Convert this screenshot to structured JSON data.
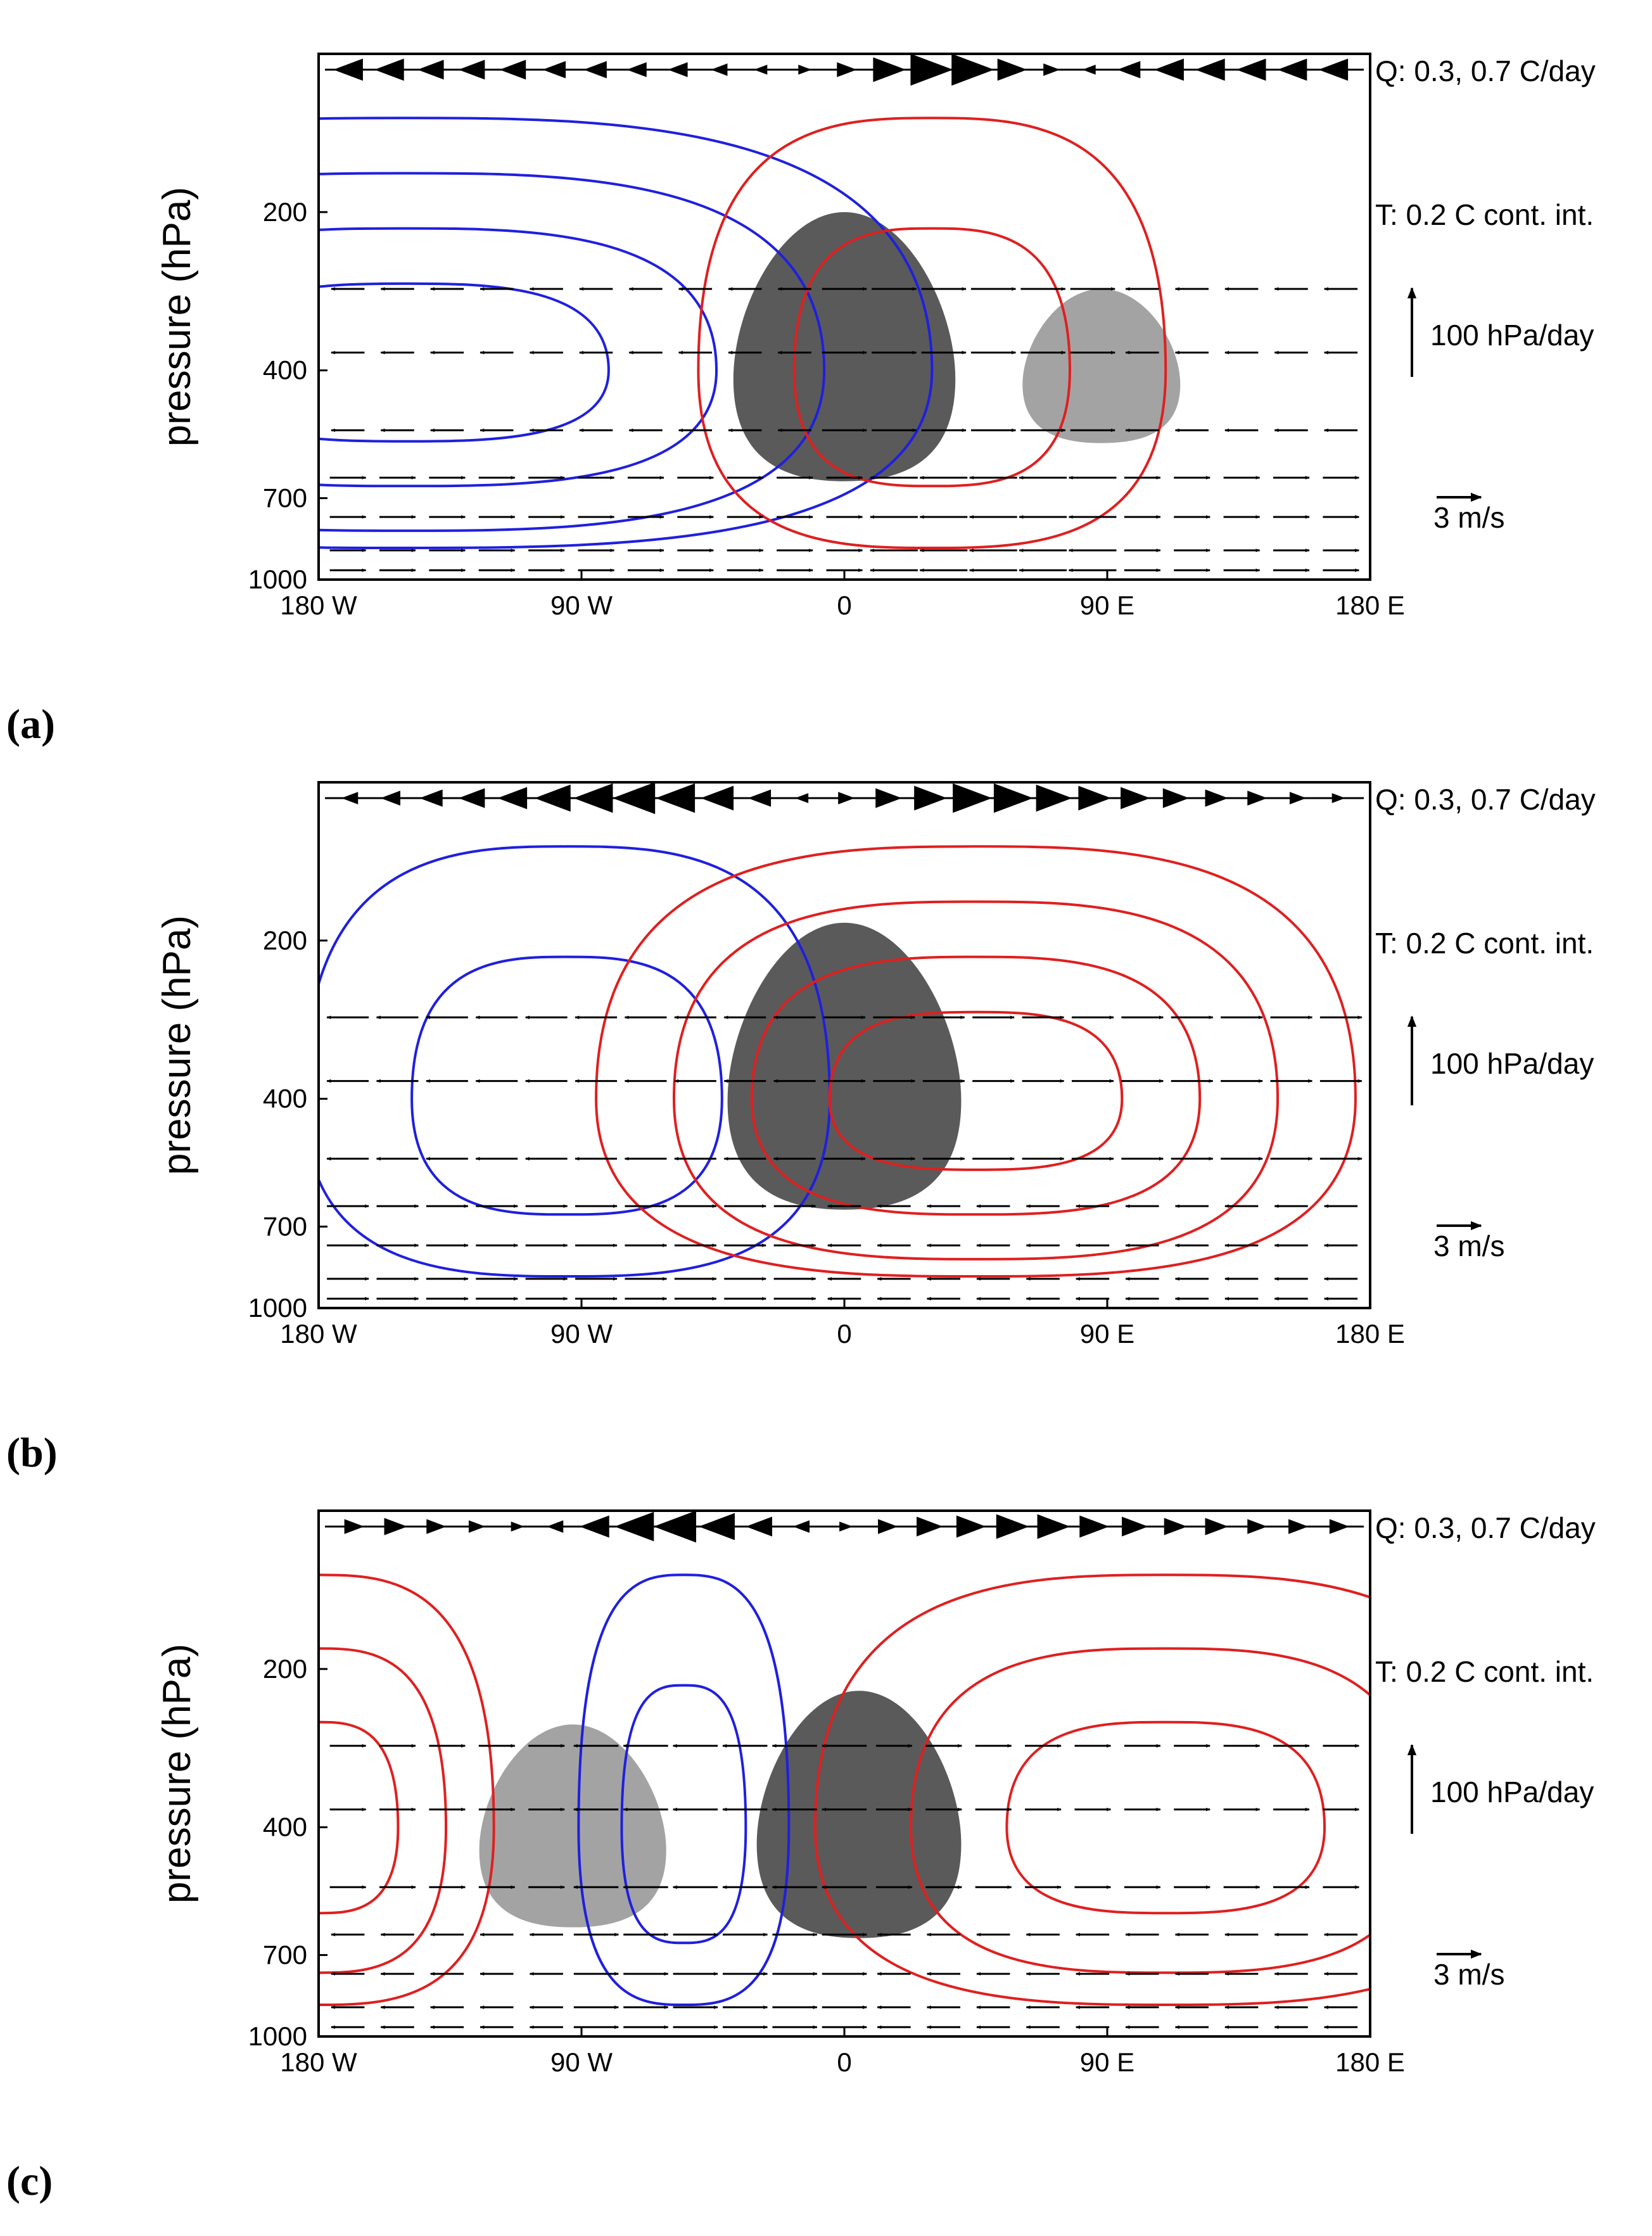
{
  "chart_data": [
    {
      "type": "contour",
      "panel_label": "(a)",
      "xlabel": "",
      "ylabel": "pressure (hPa)",
      "xlim": [
        -180,
        180
      ],
      "ylim_hPa": [
        1000,
        100
      ],
      "x_ticks": [
        {
          "value": -180,
          "label": "180 W"
        },
        {
          "value": -90,
          "label": "90 W"
        },
        {
          "value": 0,
          "label": "0"
        },
        {
          "value": 90,
          "label": "90 E"
        },
        {
          "value": 180,
          "label": "180 E"
        }
      ],
      "y_ticks": [
        {
          "value": 200,
          "label": "200"
        },
        {
          "value": 400,
          "label": "400"
        },
        {
          "value": 700,
          "label": "700"
        },
        {
          "value": 1000,
          "label": "1000"
        }
      ],
      "heating_label": "Q: 0.3, 0.7 C/day",
      "temperature_label": "T: 0.2 C cont. int.",
      "omega_scale_label": "100 hPa/day",
      "wind_scale_label": "3 m/s",
      "heating": [
        {
          "lon": 0,
          "p_top": 200,
          "p_bottom": 650,
          "width_deg": 76,
          "level": 0.7
        },
        {
          "lon": 88,
          "p_top": 280,
          "p_bottom": 550,
          "width_deg": 54,
          "level": 0.3
        }
      ],
      "warm_centers": [
        {
          "lon": 30,
          "p": 400,
          "half_width_deg": 80,
          "levels": 2
        }
      ],
      "cold_centers": [
        {
          "lon": -150,
          "p": 400,
          "half_width_deg": 180,
          "levels": 4
        }
      ],
      "top_row_vectors": [
        -0.6,
        -0.6,
        -0.5,
        -0.5,
        -0.5,
        -0.4,
        -0.4,
        -0.3,
        -0.3,
        -0.2,
        -0.1,
        0.1,
        0.3,
        0.7,
        1.0,
        1.0,
        0.6,
        0.2,
        -0.1,
        -0.4,
        -0.6,
        -0.6,
        -0.6,
        -0.6,
        -0.6
      ],
      "wind_pattern": "west"
    },
    {
      "type": "contour",
      "panel_label": "(b)",
      "xlabel": "",
      "ylabel": "pressure (hPa)",
      "xlim": [
        -180,
        180
      ],
      "ylim_hPa": [
        1000,
        100
      ],
      "x_ticks": [
        {
          "value": -180,
          "label": "180 W"
        },
        {
          "value": -90,
          "label": "90 W"
        },
        {
          "value": 0,
          "label": "0"
        },
        {
          "value": 90,
          "label": "90 E"
        },
        {
          "value": 180,
          "label": "180 E"
        }
      ],
      "y_ticks": [
        {
          "value": 200,
          "label": "200"
        },
        {
          "value": 400,
          "label": "400"
        },
        {
          "value": 700,
          "label": "700"
        },
        {
          "value": 1000,
          "label": "1000"
        }
      ],
      "heating_label": "Q: 0.3, 0.7 C/day",
      "temperature_label": "T: 0.2 C cont. int.",
      "omega_scale_label": "100 hPa/day",
      "wind_scale_label": "3 m/s",
      "heating": [
        {
          "lon": 0,
          "p_top": 185,
          "p_bottom": 650,
          "width_deg": 80,
          "level": 0.7
        }
      ],
      "warm_centers": [
        {
          "lon": 45,
          "p": 400,
          "half_width_deg": 130,
          "levels": 4
        }
      ],
      "cold_centers": [
        {
          "lon": -95,
          "p": 400,
          "half_width_deg": 90,
          "levels": 2
        }
      ],
      "top_row_vectors": [
        -0.2,
        -0.3,
        -0.4,
        -0.5,
        -0.6,
        -0.8,
        -0.9,
        -1.0,
        -0.9,
        -0.7,
        -0.4,
        -0.1,
        0.2,
        0.5,
        0.7,
        0.9,
        0.9,
        0.8,
        0.7,
        0.6,
        0.5,
        0.4,
        0.3,
        0.2,
        0.1
      ],
      "wind_pattern": "convergent"
    },
    {
      "type": "contour",
      "panel_label": "(c)",
      "xlabel": "",
      "ylabel": "pressure (hPa)",
      "xlim": [
        -180,
        180
      ],
      "ylim_hPa": [
        1000,
        100
      ],
      "x_ticks": [
        {
          "value": -180,
          "label": "180 W"
        },
        {
          "value": -90,
          "label": "90 W"
        },
        {
          "value": 0,
          "label": "0"
        },
        {
          "value": 90,
          "label": "90 E"
        },
        {
          "value": 180,
          "label": "180 E"
        }
      ],
      "y_ticks": [
        {
          "value": 200,
          "label": "200"
        },
        {
          "value": 400,
          "label": "400"
        },
        {
          "value": 700,
          "label": "700"
        },
        {
          "value": 1000,
          "label": "1000"
        }
      ],
      "heating_label": "Q: 0.3, 0.7 C/day",
      "temperature_label": "T: 0.2 C cont. int.",
      "omega_scale_label": "100 hPa/day",
      "wind_scale_label": "3 m/s",
      "heating": [
        {
          "lon": 5,
          "p_top": 220,
          "p_bottom": 650,
          "width_deg": 70,
          "level": 0.7
        },
        {
          "lon": -93,
          "p_top": 255,
          "p_bottom": 620,
          "width_deg": 64,
          "level": 0.3
        }
      ],
      "warm_centers": [
        {
          "lon": 110,
          "p": 400,
          "half_width_deg": 120,
          "levels": 3
        },
        {
          "lon": -180,
          "p": 400,
          "half_width_deg": 60,
          "levels": 3
        }
      ],
      "cold_centers": [
        {
          "lon": -55,
          "p": 400,
          "half_width_deg": 36,
          "levels": 2
        }
      ],
      "top_row_vectors": [
        0.3,
        0.4,
        0.3,
        0.2,
        0.1,
        -0.2,
        -0.6,
        -0.9,
        -1.0,
        -0.8,
        -0.5,
        -0.2,
        0.1,
        0.3,
        0.5,
        0.6,
        0.7,
        0.7,
        0.6,
        0.5,
        0.4,
        0.4,
        0.3,
        0.3,
        0.3
      ],
      "wind_pattern": "east"
    }
  ]
}
